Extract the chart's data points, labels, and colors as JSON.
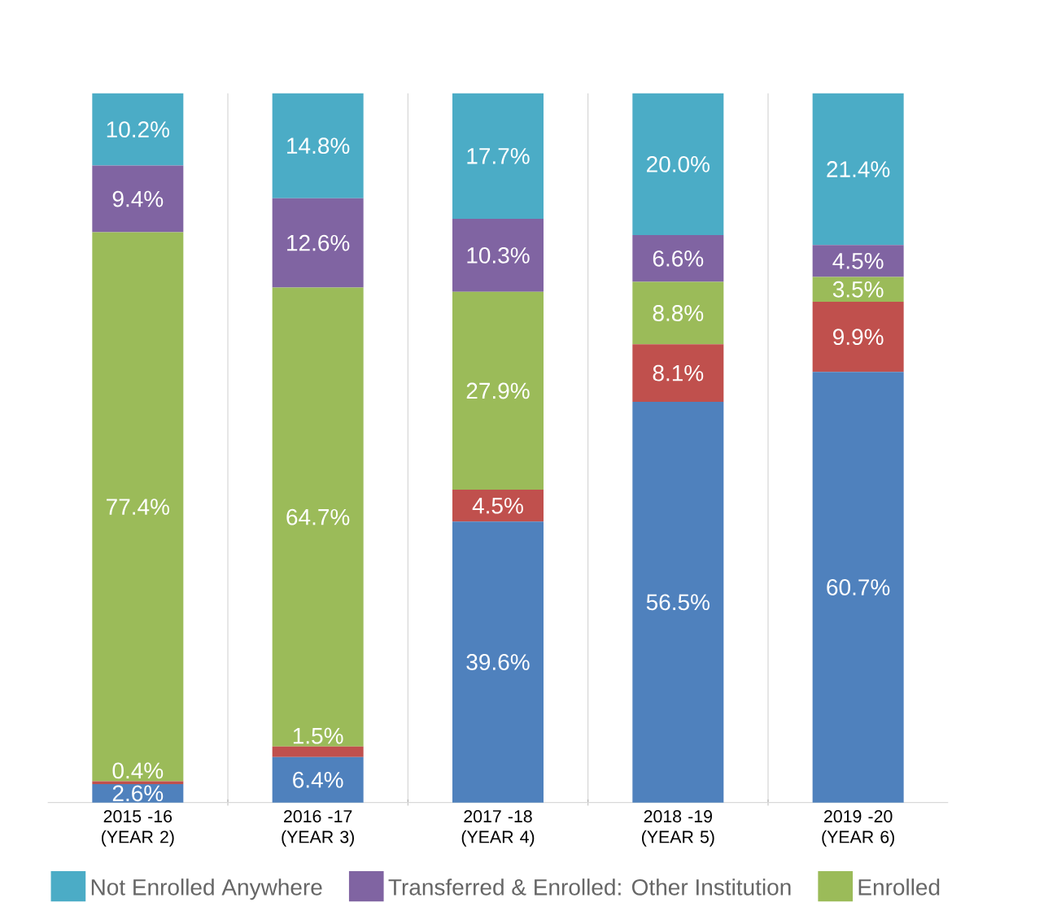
{
  "chart_data": {
    "type": "bar",
    "stacked": true,
    "categories": [
      "2015 -16 (YEAR 2)",
      "2016 -17 (YEAR 3)",
      "2017 -18 (YEAR 4)",
      "2018 -19 (YEAR 5)",
      "2019 -20 (YEAR 6)"
    ],
    "series": [
      {
        "color": "#4f81bd",
        "values": [
          2.6,
          6.4,
          39.6,
          56.5,
          60.7
        ],
        "value_labels": [
          "2.6%",
          "6.4%",
          "39.6%",
          "56.5%",
          "60.7%"
        ]
      },
      {
        "color": "#c0504d",
        "values": [
          0.4,
          1.5,
          4.5,
          8.1,
          9.9
        ],
        "value_labels": [
          "0.4%",
          "1.5%",
          "4.5%",
          "8.1%",
          "9.9%"
        ]
      },
      {
        "name": "Enrolled",
        "color": "#9bbb59",
        "values": [
          77.4,
          64.7,
          27.9,
          8.8,
          3.5
        ],
        "value_labels": [
          "77.4%",
          "64.7%",
          "27.9%",
          "8.8%",
          "3.5%"
        ]
      },
      {
        "name": "Transferred & Enrolled: Other Institution",
        "color": "#8064a2",
        "values": [
          9.4,
          12.6,
          10.3,
          6.6,
          4.5
        ],
        "value_labels": [
          "9.4%",
          "12.6%",
          "10.3%",
          "6.6%",
          "4.5%"
        ]
      },
      {
        "name": "Not Enrolled Anywhere",
        "color": "#4bacc6",
        "values": [
          10.2,
          14.8,
          17.7,
          20.0,
          21.4
        ],
        "value_labels": [
          "10.2%",
          "14.8%",
          "17.7%",
          "20.0%",
          "21.4%"
        ]
      }
    ],
    "ylim": [
      0,
      100
    ],
    "tick_labels": "x",
    "grid": "x",
    "legend": "bottom"
  }
}
